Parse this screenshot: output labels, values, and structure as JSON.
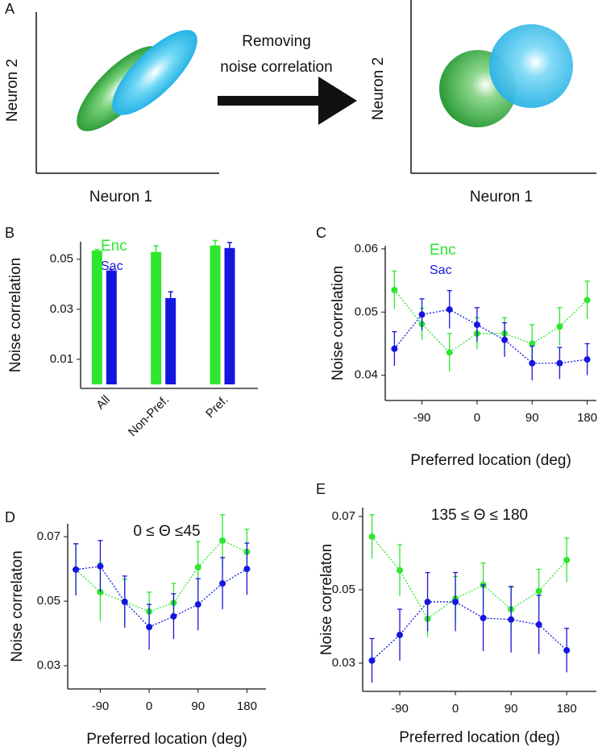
{
  "diagram": {
    "label": "A",
    "left": {
      "x_label": "Neuron 1",
      "y_label": "Neuron 2"
    },
    "arrow_label": [
      "Removing",
      "noise correlation"
    ],
    "right": {
      "x_label": "Neuron 1",
      "y_label": "Neuron 2"
    }
  },
  "chart_data": [
    {
      "label": "B",
      "type": "bar",
      "ylabel": "Noise correlation",
      "categories": [
        "All",
        "Non-Pref.",
        "Pref."
      ],
      "series": [
        {
          "name": "Enc",
          "color": "#2ee62e",
          "values": [
            0.0535,
            0.0529,
            0.0555
          ],
          "errors": [
            0.0004,
            0.0025,
            0.002
          ]
        },
        {
          "name": "Sac",
          "color": "#1515e0",
          "values": [
            0.0455,
            0.0345,
            0.0545
          ],
          "errors": [
            0.0004,
            0.0025,
            0.0022
          ]
        }
      ],
      "ylim": [
        -0.0016,
        0.057
      ],
      "yticks": [
        0.01,
        0.03,
        0.05
      ],
      "legend": "top-left"
    },
    {
      "label": "C",
      "type": "line",
      "ylabel": "Noise correlation",
      "xlabel": "Preferred location (deg)",
      "x": [
        -135,
        -90,
        -45,
        0,
        45,
        90,
        135,
        180
      ],
      "series": [
        {
          "name": "Enc",
          "color": "#2ee62e",
          "values": [
            0.0535,
            0.0481,
            0.0436,
            0.0466,
            0.0466,
            0.045,
            0.0477,
            0.0519
          ],
          "errors": [
            0.003,
            0.0025,
            0.003,
            0.0025,
            0.0025,
            0.003,
            0.003,
            0.003
          ]
        },
        {
          "name": "Sac",
          "color": "#1515e0",
          "values": [
            0.0442,
            0.0496,
            0.0504,
            0.048,
            0.0456,
            0.0419,
            0.0419,
            0.0425
          ],
          "errors": [
            0.0027,
            0.0025,
            0.003,
            0.0027,
            0.0027,
            0.0027,
            0.0025,
            0.0025
          ]
        }
      ],
      "xlim": [
        -150,
        195
      ],
      "xticks": [
        -90,
        0,
        90,
        180
      ],
      "ylim": [
        0.036,
        0.0605
      ],
      "yticks": [
        0.04,
        0.05,
        0.06
      ],
      "legend": "top-left"
    },
    {
      "label": "D",
      "type": "line",
      "ylabel": "Noise correlaton",
      "xlabel": "Preferred location (deg)",
      "annotation": "0  ≤  Θ  ≤45",
      "x": [
        -135,
        -90,
        -45,
        0,
        45,
        90,
        135,
        180
      ],
      "series": [
        {
          "name": "Enc",
          "color": "#2ee62e",
          "values": [
            0.0598,
            0.0528,
            0.0498,
            0.0468,
            0.0495,
            0.0605,
            0.0688,
            0.0653
          ],
          "errors": [
            0.008,
            0.009,
            0.007,
            0.006,
            0.006,
            0.008,
            0.008,
            0.007
          ]
        },
        {
          "name": "Sac",
          "color": "#1515e0",
          "values": [
            0.0598,
            0.0608,
            0.0498,
            0.042,
            0.0453,
            0.049,
            0.0555,
            0.06
          ],
          "errors": [
            0.008,
            0.008,
            0.008,
            0.007,
            0.007,
            0.008,
            0.008,
            0.008
          ]
        }
      ],
      "xlim": [
        -150,
        215
      ],
      "xticks": [
        -90,
        0,
        90,
        180
      ],
      "ylim": [
        0.0228,
        0.074
      ],
      "yticks": [
        0.03,
        0.05,
        0.07
      ]
    },
    {
      "label": "E",
      "type": "line",
      "ylabel": "Noise correlaton",
      "xlabel": "Preferred location (deg)",
      "annotation": "135 ≤ Θ  ≤ 180",
      "x": [
        -135,
        -90,
        -45,
        0,
        45,
        90,
        135,
        180
      ],
      "series": [
        {
          "name": "Enc",
          "color": "#2ee62e",
          "values": [
            0.0645,
            0.0553,
            0.0421,
            0.0476,
            0.0513,
            0.0447,
            0.0496,
            0.0581
          ],
          "errors": [
            0.006,
            0.007,
            0.005,
            0.006,
            0.006,
            0.006,
            0.006,
            0.006
          ]
        },
        {
          "name": "Sac",
          "color": "#1515e0",
          "values": [
            0.0307,
            0.0377,
            0.0467,
            0.0467,
            0.0423,
            0.0419,
            0.0405,
            0.0335
          ],
          "errors": [
            0.006,
            0.007,
            0.008,
            0.008,
            0.009,
            0.009,
            0.008,
            0.006
          ]
        }
      ],
      "xlim": [
        -150,
        228
      ],
      "xticks": [
        -90,
        0,
        90,
        180
      ],
      "ylim": [
        0.0223,
        0.0724
      ],
      "yticks": [
        0.03,
        0.05,
        0.07
      ]
    }
  ]
}
